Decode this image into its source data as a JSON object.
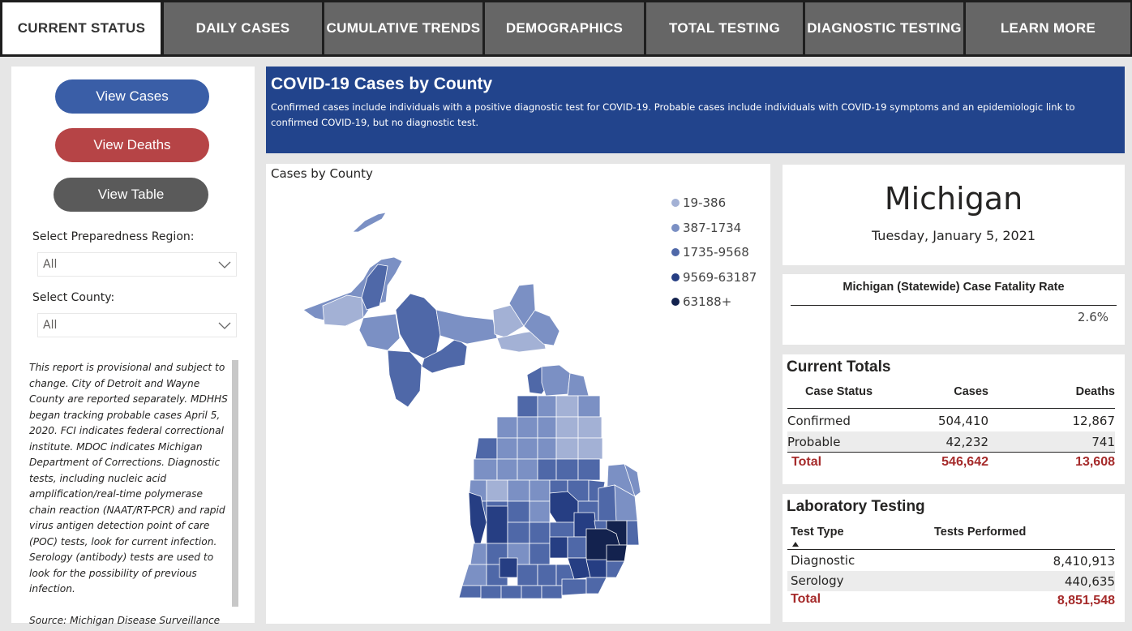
{
  "tabs": [
    {
      "label": "CURRENT STATUS",
      "active": true
    },
    {
      "label": "DAILY CASES"
    },
    {
      "label": "CUMULATIVE TRENDS"
    },
    {
      "label": "DEMOGRAPHICS"
    },
    {
      "label": "TOTAL TESTING"
    },
    {
      "label": "DIAGNOSTIC TESTING"
    },
    {
      "label": "LEARN MORE"
    }
  ],
  "left": {
    "view_cases": "View Cases",
    "view_deaths": "View Deaths",
    "view_table": "View Table",
    "region_label": "Select Preparedness Region:",
    "region_value": "All",
    "county_label": "Select County:",
    "county_value": "All",
    "note": "This report is provisional and subject to change. City of Detroit and Wayne County are reported separately.  MDHHS began tracking probable cases April 5, 2020.  FCI indicates federal correctional institute. MDOC indicates Michigan Department of Corrections. Diagnostic tests, including nucleic acid amplification/real-time polymerase chain reaction (NAAT/RT-PCR) and rapid virus antigen detection point of care (POC) tests, look for current infection. Serology (antibody) tests are used to look for the possibility of previous infection.\n\nSource: Michigan Disease Surveillance System (MDSS) and Vital Records."
  },
  "banner": {
    "title": "COVID-19 Cases by County",
    "description": "Confirmed cases include individuals with a positive diagnostic test for COVID-19. Probable cases include individuals with COVID-19 symptoms and an epidemiologic link to confirmed COVID-19, but no diagnostic test."
  },
  "map": {
    "title": "Cases by County",
    "legend": [
      {
        "label": "19-386",
        "color": "#a3b1d5"
      },
      {
        "label": "387-1734",
        "color": "#7b90c4"
      },
      {
        "label": "1735-9568",
        "color": "#4f68a8"
      },
      {
        "label": "9569-63187",
        "color": "#263e83"
      },
      {
        "label": "63188+",
        "color": "#13224e"
      }
    ]
  },
  "state": {
    "name": "Michigan",
    "date": "Tuesday, January 5, 2021"
  },
  "cfr": {
    "title": "Michigan (Statewide) Case Fatality Rate",
    "value": "2.6%"
  },
  "totals": {
    "title": "Current Totals",
    "headers": {
      "status": "Case Status",
      "cases": "Cases",
      "deaths": "Deaths"
    },
    "rows": [
      {
        "status": "Confirmed",
        "cases": "504,410",
        "deaths": "12,867"
      },
      {
        "status": "Probable",
        "cases": "42,232",
        "deaths": "741"
      }
    ],
    "total": {
      "status": "Total",
      "cases": "546,642",
      "deaths": "13,608"
    }
  },
  "lab": {
    "title": "Laboratory Testing",
    "headers": {
      "type": "Test Type",
      "performed": "Tests Performed"
    },
    "rows": [
      {
        "type": "Diagnostic",
        "performed": "8,410,913"
      },
      {
        "type": "Serology",
        "performed": "440,635"
      }
    ],
    "total": {
      "type": "Total",
      "performed": "8,851,548"
    }
  }
}
